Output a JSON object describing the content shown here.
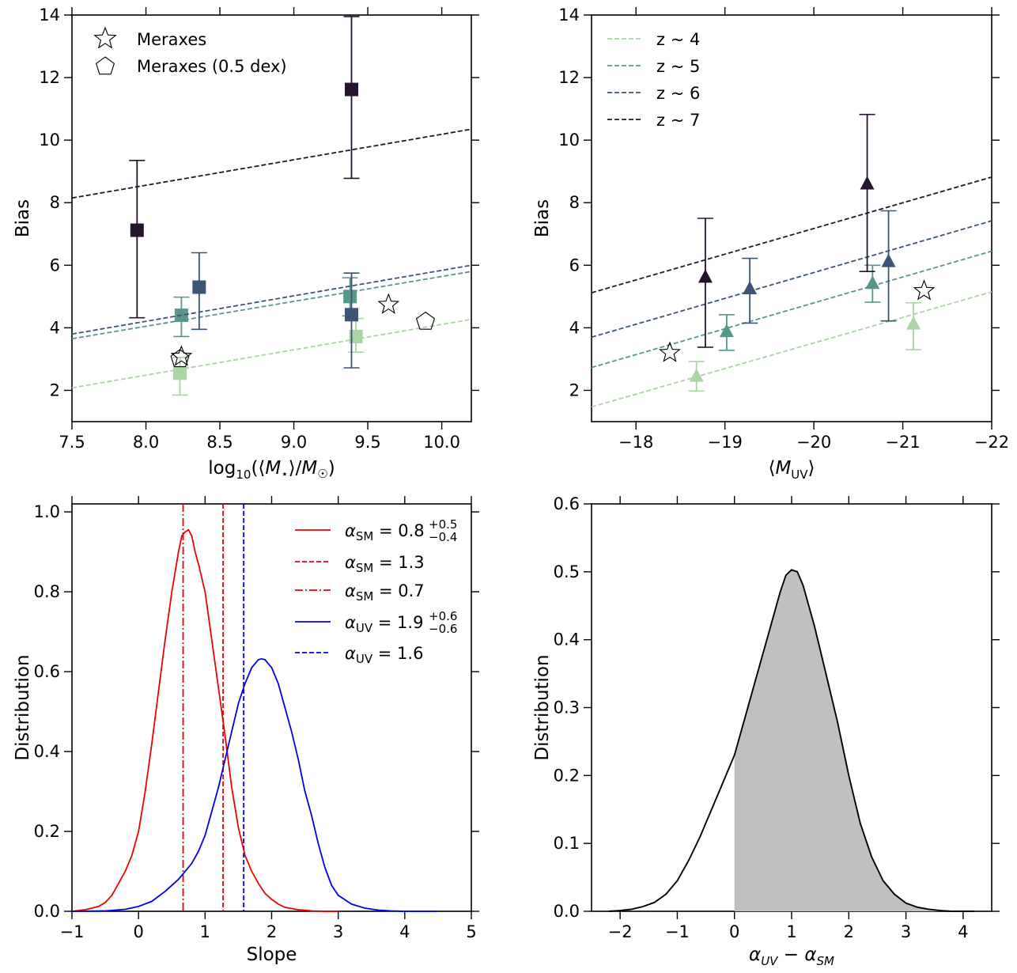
{
  "chart_data": [
    {
      "type": "scatter",
      "panel": "top-left",
      "xlabel": "log10(⟨M⋆⟩/M☉)",
      "ylabel": "Bias",
      "xlim": [
        7.5,
        10.2
      ],
      "ylim": [
        1,
        14
      ],
      "xticks": [
        7.5,
        8.0,
        8.5,
        9.0,
        9.5,
        10.0
      ],
      "xtick_labels": [
        "7.5",
        "8.0",
        "8.5",
        "9.0",
        "9.5",
        "10.0"
      ],
      "yticks": [
        2,
        4,
        6,
        8,
        10,
        12,
        14
      ],
      "ytick_labels": [
        "2",
        "4",
        "6",
        "8",
        "10",
        "12",
        "14"
      ],
      "legend_position": "top-left",
      "legend": [
        {
          "marker": "star",
          "label": "Meraxes"
        },
        {
          "marker": "pentagon",
          "label": "Meraxes (0.5 dex)"
        }
      ],
      "series": [
        {
          "name": "z ~ 4",
          "color": "#a8d5a2",
          "points": [
            {
              "x": 8.23,
              "y": 2.55,
              "lo": 1.85,
              "hi": 3.05
            },
            {
              "x": 9.42,
              "y": 3.72,
              "lo": 3.22,
              "hi": 4.3
            }
          ],
          "fit": [
            [
              7.5,
              2.08
            ],
            [
              10.2,
              4.27
            ]
          ]
        },
        {
          "name": "z ~ 5",
          "color": "#56978a",
          "points": [
            {
              "x": 8.24,
              "y": 4.4,
              "lo": 3.72,
              "hi": 4.98
            },
            {
              "x": 9.38,
              "y": 5.0,
              "lo": 4.38,
              "hi": 5.6
            }
          ],
          "fit": [
            [
              7.5,
              3.65
            ],
            [
              10.2,
              5.8
            ]
          ]
        },
        {
          "name": "z ~ 6",
          "color": "#3b5478",
          "points": [
            {
              "x": 8.36,
              "y": 5.3,
              "lo": 3.95,
              "hi": 6.4
            },
            {
              "x": 9.39,
              "y": 4.42,
              "lo": 2.72,
              "hi": 5.75
            }
          ],
          "fit": [
            [
              7.5,
              3.8
            ],
            [
              10.2,
              6.0
            ]
          ]
        },
        {
          "name": "z ~ 7",
          "color": "#24142e",
          "points": [
            {
              "x": 7.94,
              "y": 7.12,
              "lo": 4.32,
              "hi": 9.35
            },
            {
              "x": 9.39,
              "y": 11.62,
              "lo": 8.78,
              "hi": 13.95
            }
          ],
          "fit": [
            [
              7.5,
              8.15
            ],
            [
              10.2,
              10.35
            ]
          ]
        }
      ],
      "meraxes_stars": [
        {
          "x": 8.24,
          "y": 3.08
        },
        {
          "x": 9.64,
          "y": 4.74
        }
      ],
      "meraxes_pentagons": [
        {
          "x": 8.23,
          "y": 3.0
        },
        {
          "x": 9.89,
          "y": 4.2
        }
      ]
    },
    {
      "type": "scatter",
      "panel": "top-right",
      "xlabel": "⟨MUV⟩",
      "ylabel": "Bias",
      "xlim": [
        -17.5,
        -22
      ],
      "ylim": [
        1,
        14
      ],
      "xticks": [
        -18,
        -19,
        -20,
        -21,
        -22
      ],
      "xtick_labels": [
        "−18",
        "−19",
        "−20",
        "−21",
        "−22"
      ],
      "yticks": [
        2,
        4,
        6,
        8,
        10,
        12,
        14
      ],
      "ytick_labels": [
        "2",
        "4",
        "6",
        "8",
        "10",
        "12",
        "14"
      ],
      "legend_position": "top-left",
      "legend": [
        {
          "color": "#a8d5a2",
          "label": "z ~ 4"
        },
        {
          "color": "#56978a",
          "label": "z ~ 5"
        },
        {
          "color": "#3b5478",
          "label": "z ~ 6"
        },
        {
          "color": "#24142e",
          "label": "z ~ 7"
        }
      ],
      "series": [
        {
          "name": "z ~ 4",
          "color": "#a8d5a2",
          "points": [
            {
              "x": -18.68,
              "y": 2.45,
              "lo": 1.98,
              "hi": 2.92
            },
            {
              "x": -21.12,
              "y": 4.12,
              "lo": 3.3,
              "hi": 4.8
            }
          ],
          "fit": [
            [
              -17.5,
              1.47
            ],
            [
              -22,
              5.15
            ]
          ]
        },
        {
          "name": "z ~ 5",
          "color": "#56978a",
          "points": [
            {
              "x": -19.02,
              "y": 3.88,
              "lo": 3.28,
              "hi": 4.42
            },
            {
              "x": -20.66,
              "y": 5.42,
              "lo": 4.82,
              "hi": 6.0
            }
          ],
          "fit": [
            [
              -17.5,
              2.73
            ],
            [
              -22,
              6.45
            ]
          ]
        },
        {
          "name": "z ~ 6",
          "color": "#3b5478",
          "points": [
            {
              "x": -19.28,
              "y": 5.25,
              "lo": 4.15,
              "hi": 6.22
            },
            {
              "x": -20.84,
              "y": 6.12,
              "lo": 4.22,
              "hi": 7.74
            }
          ],
          "fit": [
            [
              -17.5,
              3.7
            ],
            [
              -22,
              7.42
            ]
          ]
        },
        {
          "name": "z ~ 7",
          "color": "#24142e",
          "points": [
            {
              "x": -18.78,
              "y": 5.62,
              "lo": 3.38,
              "hi": 7.5
            },
            {
              "x": -20.6,
              "y": 8.6,
              "lo": 5.8,
              "hi": 10.82
            }
          ],
          "fit": [
            [
              -17.5,
              5.12
            ],
            [
              -22,
              8.82
            ]
          ]
        }
      ],
      "meraxes_stars": [
        {
          "x": -18.38,
          "y": 3.2
        },
        {
          "x": -21.24,
          "y": 5.18
        }
      ]
    },
    {
      "type": "line",
      "panel": "bottom-left",
      "xlabel": "Slope",
      "ylabel": "Distribution",
      "xlim": [
        -1,
        5
      ],
      "ylim": [
        0,
        1.02
      ],
      "xticks": [
        -1,
        0,
        1,
        2,
        3,
        4,
        5
      ],
      "xtick_labels": [
        "−1",
        "0",
        "1",
        "2",
        "3",
        "4",
        "5"
      ],
      "yticks": [
        0,
        0.2,
        0.4,
        0.6,
        0.8,
        1.0
      ],
      "ytick_labels": [
        "0.0",
        "0.2",
        "0.4",
        "0.6",
        "0.8",
        "1.0"
      ],
      "legend_position": "top-right",
      "legend": [
        {
          "color": "#ee0000",
          "style": "solid",
          "label": "α_SM = 0.8 (+0.5 / −0.4)",
          "sym": "α",
          "sub": "SM",
          "val": " = 0.8",
          "sup": "+0.5",
          "lowsub": "−0.4"
        },
        {
          "color": "#ee0000",
          "style": "dashed",
          "label": "α_SM = 1.3",
          "sym": "α",
          "sub": "SM",
          "val": " = 1.3"
        },
        {
          "color": "#ee0000",
          "style": "dashdot",
          "label": "α_SM = 0.7",
          "sym": "α",
          "sub": "SM",
          "val": " = 0.7"
        },
        {
          "color": "#0000ee",
          "style": "solid",
          "label": "α_UV = 1.9 (+0.6 / −0.6)",
          "sym": "α",
          "sub": "UV",
          "val": " = 1.9",
          "sup": "+0.6",
          "lowsub": "−0.6"
        },
        {
          "color": "#0000ee",
          "style": "dashed",
          "label": "α_UV = 1.6",
          "sym": "α",
          "sub": "UV",
          "val": " = 1.6"
        }
      ],
      "curves": [
        {
          "name": "SM distribution",
          "color": "#ee0000",
          "x": [
            -1.0,
            -0.8,
            -0.6,
            -0.5,
            -0.4,
            -0.3,
            -0.2,
            -0.1,
            0.0,
            0.1,
            0.2,
            0.3,
            0.4,
            0.5,
            0.6,
            0.65,
            0.7,
            0.75,
            0.8,
            0.85,
            0.9,
            1.0,
            1.1,
            1.2,
            1.3,
            1.4,
            1.5,
            1.6,
            1.7,
            1.8,
            1.9,
            2.0,
            2.1,
            2.2,
            2.4,
            2.6,
            2.8,
            3.0
          ],
          "y": [
            0.0,
            0.004,
            0.012,
            0.022,
            0.04,
            0.07,
            0.1,
            0.14,
            0.2,
            0.3,
            0.42,
            0.55,
            0.68,
            0.8,
            0.9,
            0.94,
            0.95,
            0.955,
            0.94,
            0.9,
            0.87,
            0.8,
            0.68,
            0.56,
            0.44,
            0.31,
            0.21,
            0.14,
            0.1,
            0.07,
            0.045,
            0.03,
            0.018,
            0.01,
            0.004,
            0.001,
            0.0,
            0.0
          ]
        },
        {
          "name": "UV distribution",
          "color": "#0000ee",
          "x": [
            -1.0,
            -0.5,
            -0.2,
            0.0,
            0.2,
            0.4,
            0.6,
            0.8,
            0.9,
            1.0,
            1.1,
            1.2,
            1.3,
            1.4,
            1.5,
            1.6,
            1.7,
            1.8,
            1.85,
            1.9,
            2.0,
            2.1,
            2.2,
            2.3,
            2.4,
            2.5,
            2.6,
            2.7,
            2.8,
            2.9,
            3.0,
            3.2,
            3.4,
            3.6,
            3.8,
            4.0,
            4.2,
            4.5
          ],
          "y": [
            0.0,
            0.001,
            0.005,
            0.012,
            0.025,
            0.05,
            0.08,
            0.12,
            0.15,
            0.19,
            0.25,
            0.31,
            0.38,
            0.45,
            0.52,
            0.57,
            0.61,
            0.63,
            0.632,
            0.63,
            0.61,
            0.57,
            0.51,
            0.45,
            0.38,
            0.3,
            0.24,
            0.17,
            0.11,
            0.065,
            0.04,
            0.018,
            0.008,
            0.003,
            0.001,
            0.0,
            0.0,
            0.0
          ]
        }
      ],
      "vlines": [
        {
          "x": 0.67,
          "color": "#ee0000",
          "style": "dashdot"
        },
        {
          "x": 1.27,
          "color": "#ee0000",
          "style": "dashed"
        },
        {
          "x": 1.58,
          "color": "#0000ee",
          "style": "dashed"
        }
      ]
    },
    {
      "type": "area",
      "panel": "bottom-right",
      "xlabel": "α_UV − α_SM",
      "xlabel_parts": {
        "a": "α",
        "sub1": "UV",
        "mid": " − ",
        "b": "α",
        "sub2": "SM"
      },
      "ylabel": "Distribution",
      "xlim": [
        -2.5,
        4.5
      ],
      "ylim": [
        0,
        0.6
      ],
      "xticks": [
        -2,
        -1,
        0,
        1,
        2,
        3,
        4
      ],
      "xtick_labels": [
        "−2",
        "−1",
        "0",
        "1",
        "2",
        "3",
        "4"
      ],
      "yticks": [
        0,
        0.1,
        0.2,
        0.3,
        0.4,
        0.5,
        0.6
      ],
      "ytick_labels": [
        "0.0",
        "0.1",
        "0.2",
        "0.3",
        "0.4",
        "0.5",
        "0.6"
      ],
      "shade_from": 0,
      "fill_color": "#c0c0c0",
      "curve": {
        "x": [
          -2.2,
          -2.0,
          -1.8,
          -1.6,
          -1.4,
          -1.2,
          -1.0,
          -0.8,
          -0.6,
          -0.4,
          -0.2,
          0.0,
          0.2,
          0.4,
          0.6,
          0.8,
          0.9,
          1.0,
          1.1,
          1.2,
          1.4,
          1.6,
          1.8,
          2.0,
          2.2,
          2.4,
          2.6,
          2.8,
          3.0,
          3.2,
          3.4,
          3.6,
          3.8,
          4.0,
          4.2
        ],
        "y": [
          0.0,
          0.001,
          0.003,
          0.007,
          0.013,
          0.025,
          0.045,
          0.075,
          0.11,
          0.15,
          0.19,
          0.23,
          0.29,
          0.35,
          0.41,
          0.47,
          0.495,
          0.503,
          0.5,
          0.48,
          0.42,
          0.35,
          0.28,
          0.2,
          0.13,
          0.08,
          0.045,
          0.025,
          0.012,
          0.006,
          0.003,
          0.001,
          0.0,
          0.0,
          0.0
        ]
      }
    }
  ]
}
